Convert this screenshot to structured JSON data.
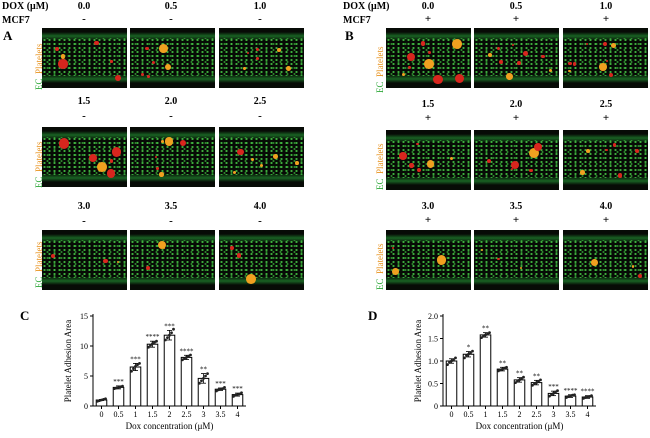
{
  "header": {
    "dox_label": "DOX (μM)",
    "mcf7_label": "MCF7",
    "row_concentrations": [
      [
        "0.0",
        "0.5",
        "1.0"
      ],
      [
        "1.5",
        "2.0",
        "2.5"
      ],
      [
        "3.0",
        "3.5",
        "4.0"
      ]
    ],
    "sign_left": "-",
    "sign_right": "+"
  },
  "panels": {
    "A": "A",
    "B": "B",
    "C": "C",
    "D": "D",
    "micrograph_label_ec": "EC",
    "micrograph_label_platelets": "Platelets"
  },
  "colors": {
    "ec_green": "#2fa83a",
    "platelet_orange": "#e8931f",
    "bar_fill": "#ffffff",
    "point": "#222222"
  },
  "chart_data": [
    {
      "panel": "C",
      "type": "bar",
      "xlabel": "Dox concentration (μM)",
      "ylabel": "Platelet Adhesion Area",
      "categories": [
        "0",
        "0.5",
        "1",
        "1.5",
        "2",
        "2.5",
        "3",
        "3.5",
        "4"
      ],
      "values": [
        1.0,
        3.1,
        6.5,
        10.3,
        11.8,
        8.1,
        4.6,
        2.8,
        1.9
      ],
      "errors": [
        0.1,
        0.25,
        0.6,
        0.5,
        0.8,
        0.35,
        0.8,
        0.2,
        0.25
      ],
      "points": [
        [
          0.8,
          0.9,
          1.0,
          1.1,
          1.2
        ],
        [
          2.9,
          3.0,
          3.1,
          3.2,
          3.3
        ],
        [
          5.8,
          6.2,
          6.6,
          6.9,
          7.1
        ],
        [
          9.8,
          10.1,
          10.4,
          10.6,
          10.8
        ],
        [
          11.0,
          11.4,
          11.8,
          12.2,
          12.8
        ],
        [
          7.7,
          7.9,
          8.1,
          8.3,
          8.5
        ],
        [
          3.8,
          4.2,
          4.6,
          5.0,
          5.4
        ],
        [
          2.5,
          2.7,
          2.8,
          2.9,
          3.1
        ],
        [
          1.6,
          1.8,
          1.9,
          2.0,
          2.2
        ]
      ],
      "significance": [
        "",
        "***",
        "***",
        "****",
        "***",
        "****",
        "**",
        "***",
        "***"
      ],
      "ylim": [
        0,
        15
      ],
      "yticks": [
        "0",
        "5",
        "10",
        "15"
      ]
    },
    {
      "panel": "D",
      "type": "bar",
      "xlabel": "Dox concentration (μM)",
      "ylabel": "Platelet Adhesion Area",
      "categories": [
        "0",
        "0.5",
        "1",
        "1.5",
        "2",
        "2.5",
        "3",
        "3.5",
        "4"
      ],
      "values": [
        1.0,
        1.15,
        1.58,
        0.82,
        0.58,
        0.52,
        0.28,
        0.22,
        0.2
      ],
      "errors": [
        0.05,
        0.06,
        0.05,
        0.04,
        0.05,
        0.05,
        0.05,
        0.03,
        0.03
      ],
      "points": [
        [
          0.92,
          0.97,
          1.0,
          1.03,
          1.07
        ],
        [
          1.07,
          1.12,
          1.15,
          1.18,
          1.22
        ],
        [
          1.52,
          1.55,
          1.58,
          1.6,
          1.63
        ],
        [
          0.78,
          0.8,
          0.82,
          0.84,
          0.86
        ],
        [
          0.52,
          0.55,
          0.58,
          0.61,
          0.64
        ],
        [
          0.46,
          0.5,
          0.52,
          0.55,
          0.58
        ],
        [
          0.22,
          0.25,
          0.28,
          0.31,
          0.34
        ],
        [
          0.19,
          0.21,
          0.22,
          0.24,
          0.25
        ],
        [
          0.17,
          0.19,
          0.2,
          0.21,
          0.23
        ]
      ],
      "significance": [
        "",
        "*",
        "**",
        "**",
        "**",
        "**",
        "***",
        "****",
        "****"
      ],
      "ylim": [
        0,
        2.0
      ],
      "yticks": [
        "0",
        "0.5",
        "1.0",
        "1.5",
        "2.0"
      ]
    }
  ]
}
